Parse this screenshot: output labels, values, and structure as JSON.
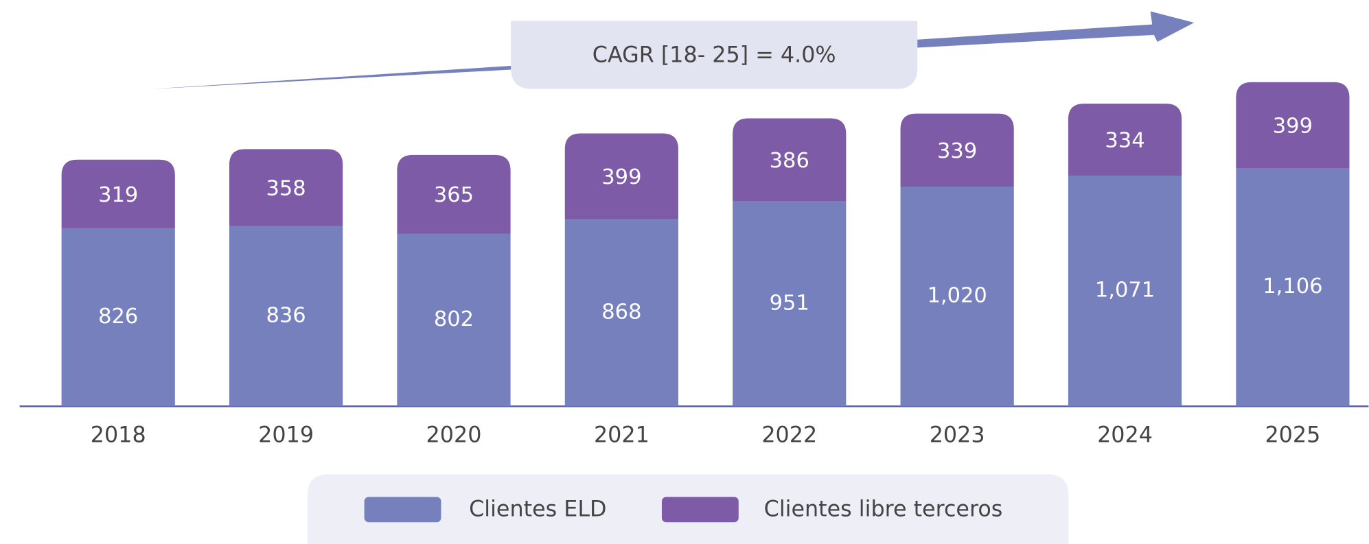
{
  "chart_data": {
    "type": "stacked_bar",
    "annotation": "CAGR [18- 25] = 4.0%",
    "categories": [
      "2018",
      "2019",
      "2020",
      "2021",
      "2022",
      "2023",
      "2024",
      "2025"
    ],
    "series": [
      {
        "name": "Clientes ELD",
        "color": "#7580bd",
        "values": [
          826,
          836,
          802,
          868,
          951,
          1020,
          1071,
          1106
        ],
        "value_labels": [
          "826",
          "836",
          "802",
          "868",
          "951",
          "1,020",
          "1,071",
          "1,106"
        ]
      },
      {
        "name": "Clientes libre terceros",
        "color": "#7d5ba6",
        "values": [
          319,
          358,
          365,
          399,
          386,
          339,
          334,
          399
        ]
      }
    ],
    "legend": "bottom"
  }
}
